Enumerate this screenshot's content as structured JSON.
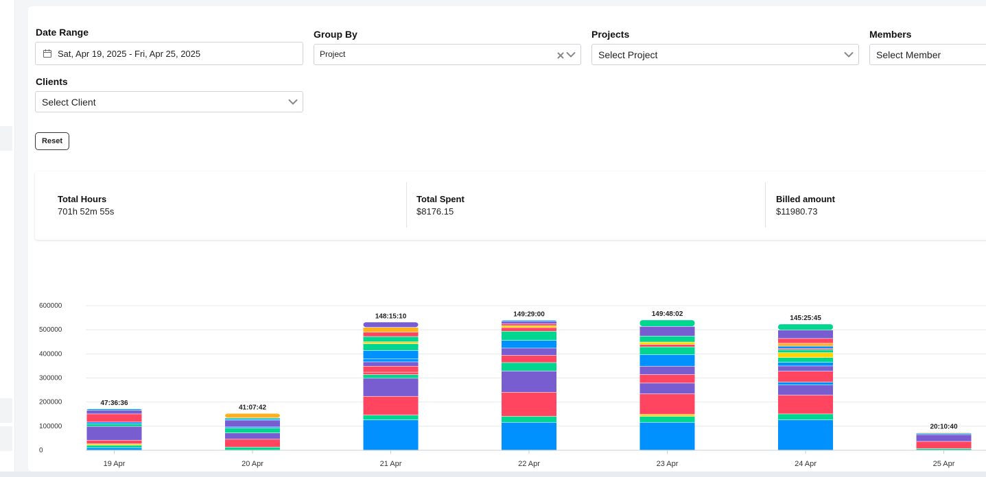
{
  "filters": {
    "date_range": {
      "label": "Date Range",
      "value": "Sat, Apr 19, 2025 - Fri, Apr 25, 2025"
    },
    "group_by": {
      "label": "Group By",
      "value": "Project"
    },
    "projects": {
      "label": "Projects",
      "placeholder": "Select Project"
    },
    "members": {
      "label": "Members",
      "placeholder": "Select Member"
    },
    "clients": {
      "label": "Clients",
      "placeholder": "Select Client"
    },
    "reset_label": "Reset"
  },
  "summary": {
    "total_hours": {
      "title": "Total Hours",
      "value": "701h 52m 55s"
    },
    "total_spent": {
      "title": "Total Spent",
      "value": "$8176.15"
    },
    "billed_amount": {
      "title": "Billed amount",
      "value": "$11980.73"
    }
  },
  "icons": {
    "calendar": "calendar-icon",
    "clear": "clear-icon",
    "chevron": "chevron-down-icon"
  },
  "chart_data": {
    "type": "bar",
    "stacked": true,
    "categories": [
      "19 Apr",
      "20 Apr",
      "21 Apr",
      "22 Apr",
      "23 Apr",
      "24 Apr",
      "25 Apr"
    ],
    "totals_labels": [
      "47:36:36",
      "41:07:42",
      "148:15:10",
      "149:29:00",
      "149:48:02",
      "145:25:45",
      "20:10:40"
    ],
    "ylim": [
      0,
      600000
    ],
    "yticks": [
      0,
      100000,
      200000,
      300000,
      400000,
      500000,
      600000
    ],
    "grid": true,
    "legend": "none",
    "stacks": [
      [
        [
          10000,
          "#0091ff"
        ],
        [
          10000,
          "#00d68f"
        ],
        [
          6000,
          "#ffd400"
        ],
        [
          15000,
          "#ff4560"
        ],
        [
          57000,
          "#775dd0"
        ],
        [
          10000,
          "#00d68f"
        ],
        [
          8000,
          "#0091ff"
        ],
        [
          34000,
          "#ff4560"
        ],
        [
          15000,
          "#775dd0"
        ],
        [
          6000,
          "#0091ff"
        ]
      ],
      [
        [
          12000,
          "#00d68f"
        ],
        [
          33000,
          "#ff4560"
        ],
        [
          26000,
          "#775dd0"
        ],
        [
          20000,
          "#00d68f"
        ],
        [
          5000,
          "#0091ff"
        ],
        [
          28000,
          "#775dd0"
        ],
        [
          5000,
          "#0091ff"
        ],
        [
          5000,
          "#00d68f"
        ],
        [
          18000,
          "#ffb020"
        ]
      ],
      [
        [
          125000,
          "#0091ff"
        ],
        [
          20000,
          "#00d68f"
        ],
        [
          78000,
          "#ff4560"
        ],
        [
          75000,
          "#775dd0"
        ],
        [
          15000,
          "#00d68f"
        ],
        [
          10000,
          "#ff4560"
        ],
        [
          25000,
          "#ff4560"
        ],
        [
          18000,
          "#775dd0"
        ],
        [
          12000,
          "#0091ff"
        ],
        [
          35000,
          "#0091ff"
        ],
        [
          28000,
          "#00d68f"
        ],
        [
          8000,
          "#ffd400"
        ],
        [
          22000,
          "#00d68f"
        ],
        [
          18000,
          "#ff4560"
        ],
        [
          20000,
          "#ffb020"
        ],
        [
          22000,
          "#775dd0"
        ]
      ],
      [
        [
          115000,
          "#0091ff"
        ],
        [
          25000,
          "#00d68f"
        ],
        [
          100000,
          "#ff4560"
        ],
        [
          88000,
          "#775dd0"
        ],
        [
          35000,
          "#00d68f"
        ],
        [
          30000,
          "#ff4560"
        ],
        [
          30000,
          "#775dd0"
        ],
        [
          32000,
          "#0091ff"
        ],
        [
          38000,
          "#00d68f"
        ],
        [
          15000,
          "#ff4560"
        ],
        [
          8000,
          "#ffd400"
        ],
        [
          8000,
          "#ff4560"
        ],
        [
          10000,
          "#775dd0"
        ],
        [
          5000,
          "#0091ff"
        ]
      ],
      [
        [
          115000,
          "#0091ff"
        ],
        [
          25000,
          "#00d68f"
        ],
        [
          8000,
          "#ffd400"
        ],
        [
          85000,
          "#ff4560"
        ],
        [
          45000,
          "#775dd0"
        ],
        [
          35000,
          "#ff4560"
        ],
        [
          35000,
          "#775dd0"
        ],
        [
          48000,
          "#0091ff"
        ],
        [
          32000,
          "#00d68f"
        ],
        [
          10000,
          "#ff4560"
        ],
        [
          10000,
          "#ffd400"
        ],
        [
          25000,
          "#00d68f"
        ],
        [
          40000,
          "#775dd0"
        ],
        [
          27000,
          "#00d68f"
        ]
      ],
      [
        [
          125000,
          "#0091ff"
        ],
        [
          25000,
          "#00d68f"
        ],
        [
          78000,
          "#ff4560"
        ],
        [
          42000,
          "#775dd0"
        ],
        [
          12000,
          "#0091ff"
        ],
        [
          45000,
          "#ff4560"
        ],
        [
          22000,
          "#775dd0"
        ],
        [
          15000,
          "#0091ff"
        ],
        [
          20000,
          "#00d68f"
        ],
        [
          20000,
          "#ffd400"
        ],
        [
          12000,
          "#00d68f"
        ],
        [
          5000,
          "#ff4560"
        ],
        [
          10000,
          "#0091ff"
        ],
        [
          12000,
          "#ffb020"
        ],
        [
          20000,
          "#ff4560"
        ],
        [
          35000,
          "#775dd0"
        ],
        [
          25000,
          "#00d68f"
        ]
      ],
      [
        [
          6000,
          "#00d68f"
        ],
        [
          30000,
          "#ff4560"
        ],
        [
          28000,
          "#775dd0"
        ],
        [
          5000,
          "#0091ff"
        ],
        [
          3000,
          "#ffb020"
        ]
      ]
    ]
  }
}
